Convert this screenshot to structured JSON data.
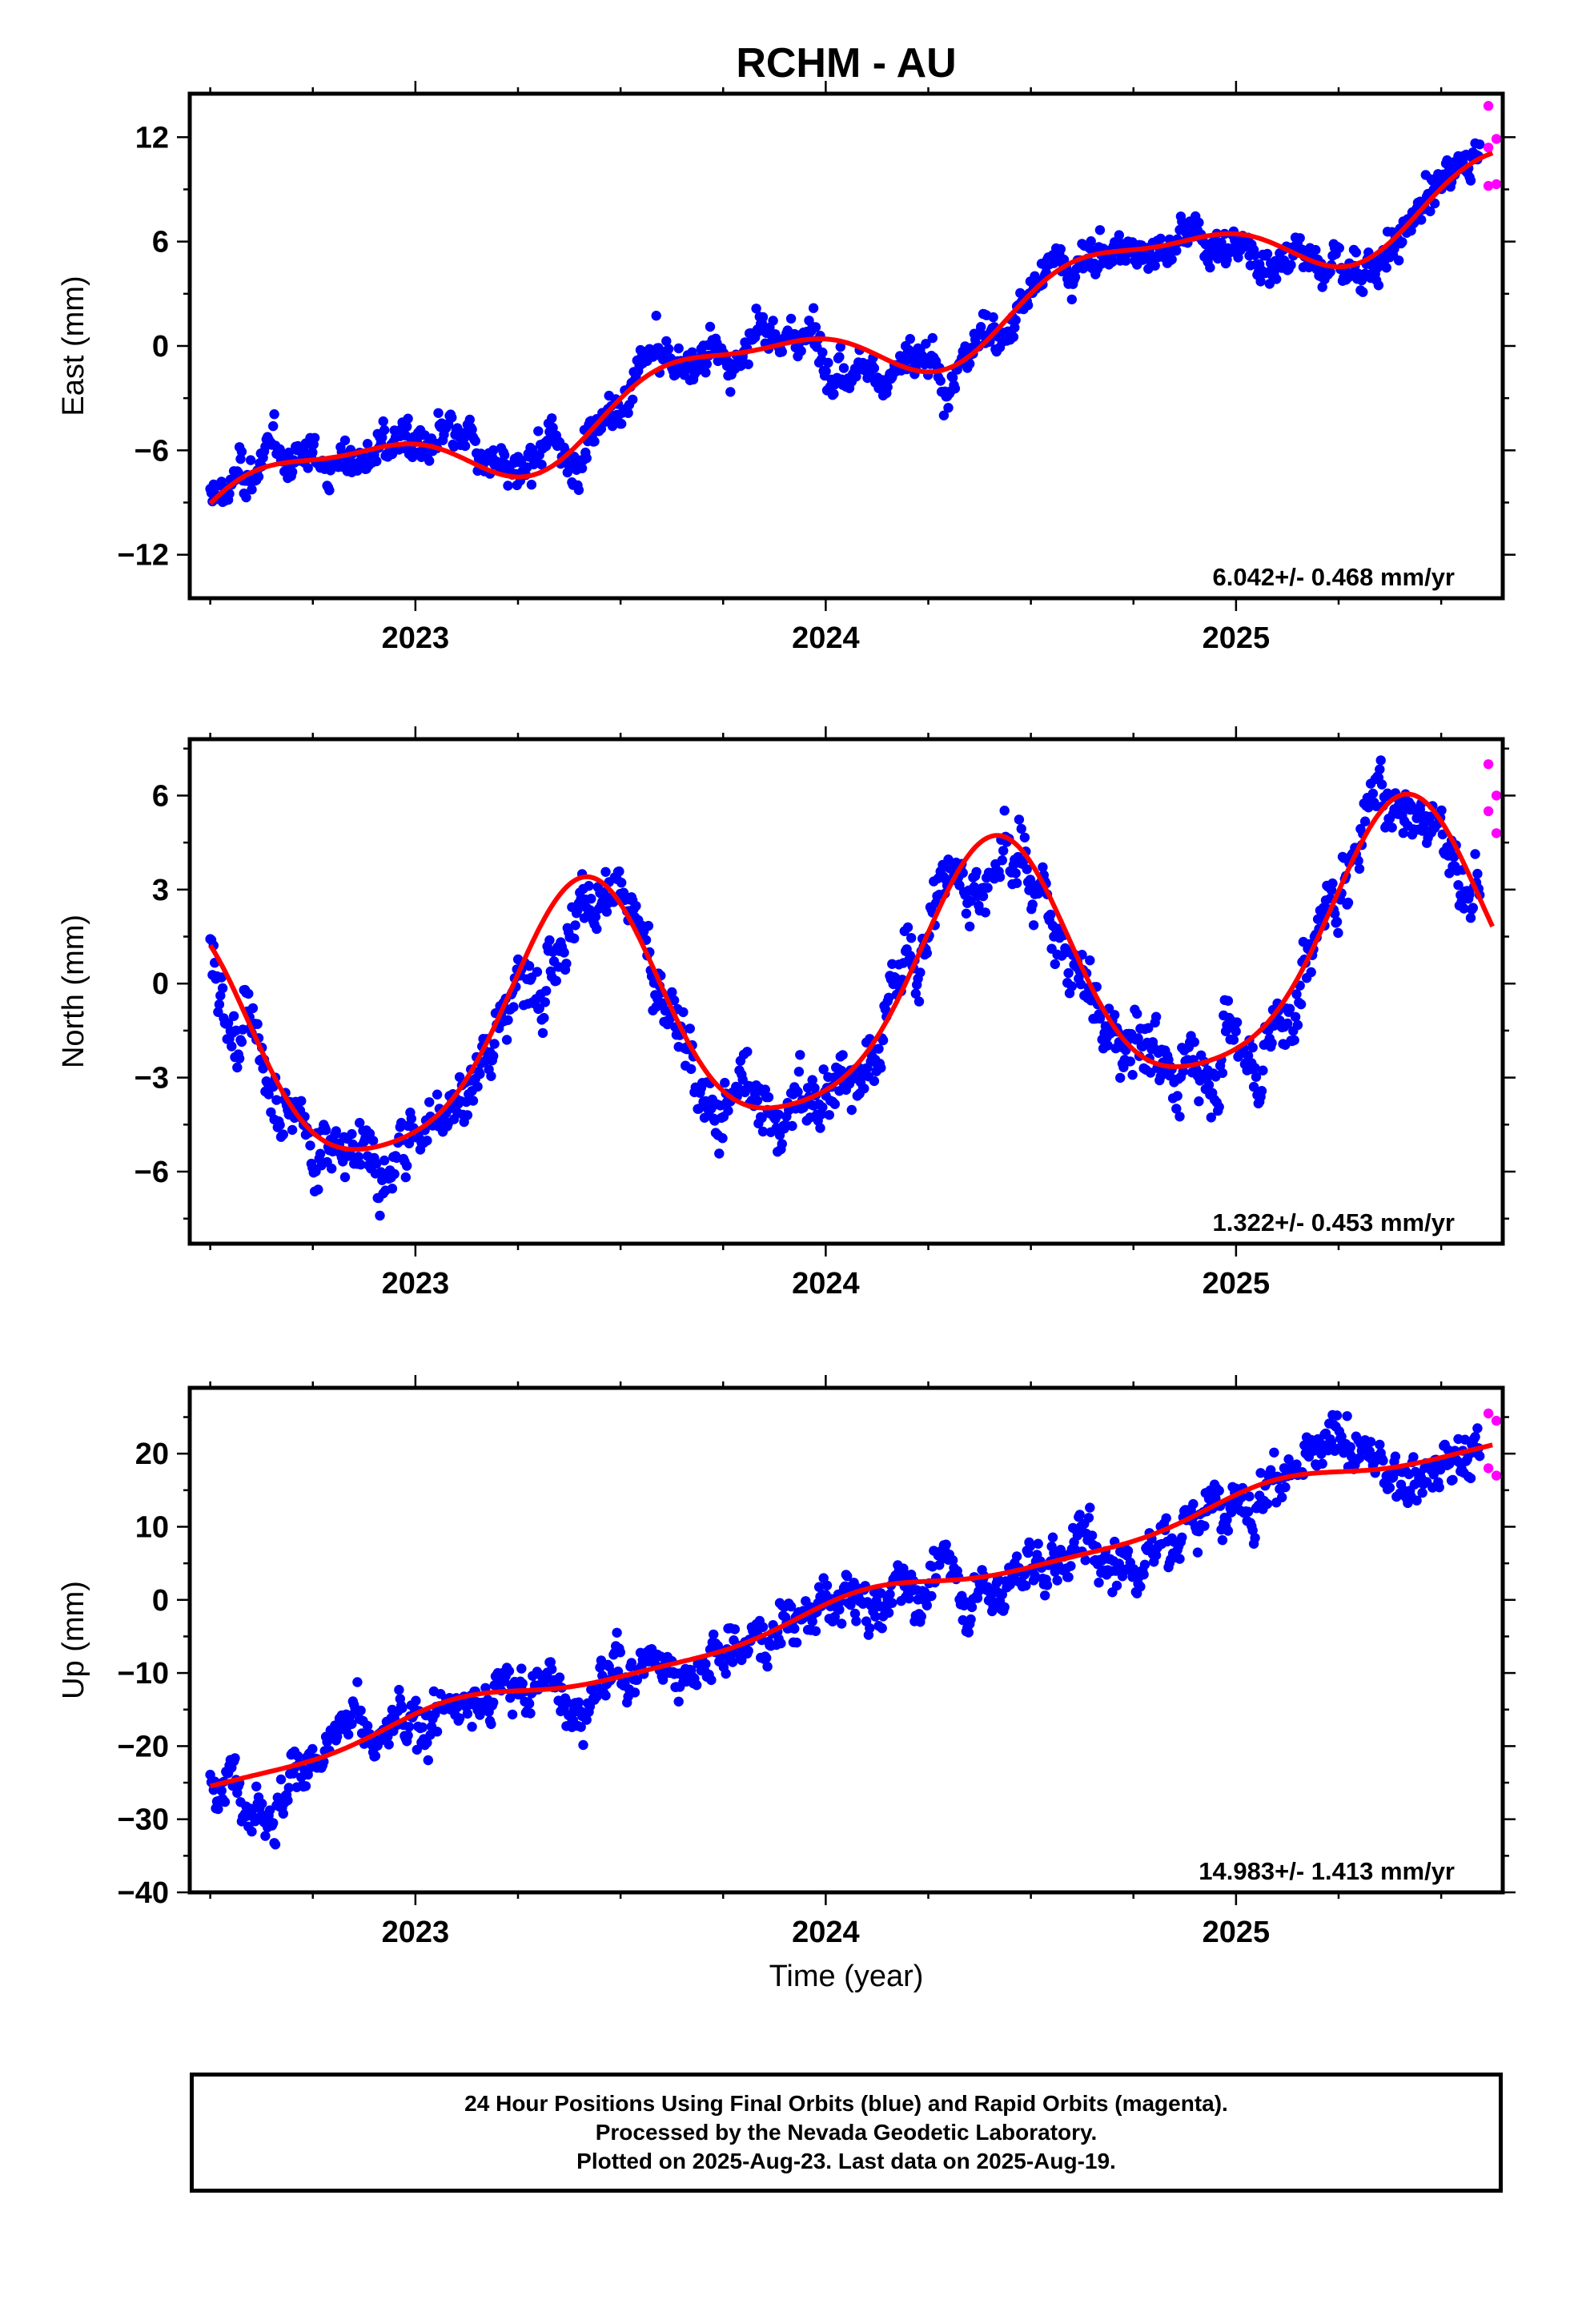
{
  "title": "RCHM - AU",
  "colors": {
    "final_orbits": "#0000ff",
    "rapid_orbits": "#ff00ff",
    "model_fit": "#ff0000"
  },
  "xaxis": {
    "label": "Time (year)",
    "ticks": [
      "2023",
      "2024",
      "2025"
    ]
  },
  "caption": {
    "line1": "24 Hour Positions Using Final Orbits (blue) and Rapid Orbits (magenta).",
    "line2": "Processed by the Nevada Geodetic Laboratory.",
    "line3": "Plotted on 2025-Aug-23. Last data on 2025-Aug-19."
  },
  "chart_data": [
    {
      "type": "scatter",
      "ylabel": "East (mm)",
      "ylim": [
        -14.5,
        14.5
      ],
      "yticks": [
        -12,
        -6,
        0,
        6,
        12
      ],
      "ytick_labels": [
        "−12",
        "−6",
        "0",
        "6",
        "12"
      ],
      "xlim": [
        2022.45,
        2025.65
      ],
      "xticks": [
        2023,
        2024,
        2025
      ],
      "xtick_labels": [
        "2023",
        "2024",
        "2025"
      ],
      "rate": "6.042+/- 0.468 mm/yr",
      "model": {
        "trend": 6.04,
        "origin": 2024.0,
        "offset": -0.4,
        "annual": [
          -2.0,
          0.2
        ],
        "semiannual": [
          0.4,
          0.6
        ]
      },
      "noise": 1.4,
      "gaps": [],
      "rapid": [
        13.8,
        11.9,
        11.4,
        9.3,
        9.2
      ],
      "rapid_x": 2025.615
    },
    {
      "type": "scatter",
      "ylabel": "North (mm)",
      "ylim": [
        -8.3,
        7.8
      ],
      "yticks": [
        -6,
        -3,
        0,
        3,
        6
      ],
      "ytick_labels": [
        "−6",
        "−3",
        "0",
        "3",
        "6"
      ],
      "xlim": [
        2022.45,
        2025.65
      ],
      "xticks": [
        2023,
        2024,
        2025
      ],
      "xtick_labels": [
        "2023",
        "2024",
        "2025"
      ],
      "rate": "1.322+/- 0.453 mm/yr",
      "model": {
        "trend": 1.32,
        "origin": 2024.0,
        "offset": -0.5,
        "annual": [
          2.2,
          -3.3
        ],
        "semiannual": [
          -0.6,
          0.4
        ]
      },
      "noise": 1.2,
      "gaps": [],
      "rapid": [
        7.0,
        6.0,
        5.5,
        4.8
      ],
      "rapid_x": 2025.615
    },
    {
      "type": "scatter",
      "ylabel": "Up (mm)",
      "ylim": [
        -40,
        29
      ],
      "yticks": [
        -40,
        -30,
        -20,
        -10,
        0,
        10,
        20
      ],
      "ytick_labels": [
        "−40",
        "−30",
        "−20",
        "−10",
        "0",
        "10",
        "20"
      ],
      "xlim": [
        2022.45,
        2025.65
      ],
      "xticks": [
        2023,
        2024,
        2025
      ],
      "xtick_labels": [
        "2023",
        "2024",
        "2025"
      ],
      "rate": "14.983+/- 1.413 mm/yr",
      "model": {
        "trend": 14.98,
        "origin": 2024.0,
        "offset": -2.0,
        "annual": [
          1.0,
          1.2
        ],
        "semiannual": [
          0.4,
          0.2
        ]
      },
      "noise": 3.8,
      "gaps": [],
      "rapid": [
        25.5,
        24.5,
        18.0,
        17.0
      ],
      "rapid_x": 2025.615
    }
  ]
}
